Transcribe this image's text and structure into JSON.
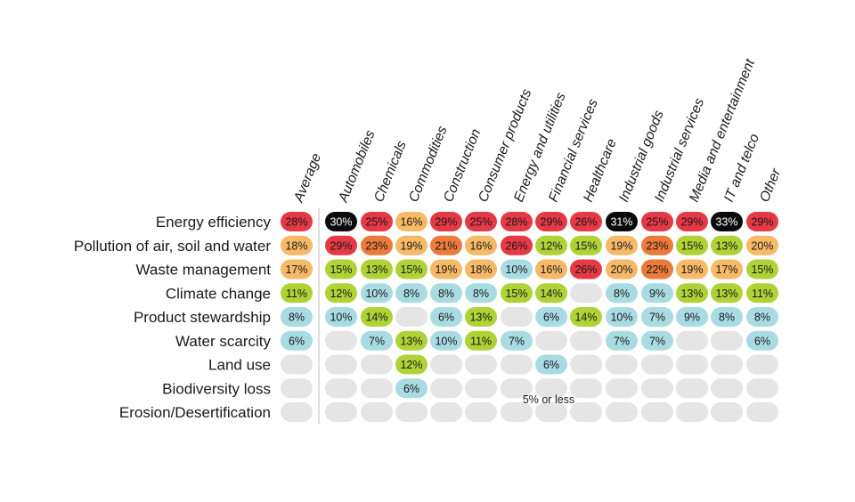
{
  "chart_data": {
    "type": "heatmap",
    "columns": [
      "Average",
      "Automobiles",
      "Chemicals",
      "Commodities",
      "Construction",
      "Consumer products",
      "Energy and utilities",
      "Financial services",
      "Healthcare",
      "Industrial goods",
      "Industrial services",
      "Media and entertainment",
      "IT and telco",
      "Other"
    ],
    "rows": [
      "Energy efficiency",
      "Pollution of air, soil and water",
      "Waste management",
      "Climate change",
      "Product stewardship",
      "Water scarcity",
      "Land use",
      "Biodiversity loss",
      "Erosion/Desertification"
    ],
    "values": [
      [
        "28%",
        "30%",
        "25%",
        "16%",
        "29%",
        "25%",
        "28%",
        "29%",
        "26%",
        "31%",
        "25%",
        "29%",
        "33%",
        "29%"
      ],
      [
        "18%",
        "29%",
        "23%",
        "19%",
        "21%",
        "16%",
        "26%",
        "12%",
        "15%",
        "19%",
        "23%",
        "15%",
        "13%",
        "20%"
      ],
      [
        "17%",
        "15%",
        "13%",
        "15%",
        "19%",
        "18%",
        "10%",
        "16%",
        "26%",
        "20%",
        "22%",
        "19%",
        "17%",
        "15%"
      ],
      [
        "11%",
        "12%",
        "10%",
        "8%",
        "8%",
        "8%",
        "15%",
        "14%",
        "",
        "8%",
        "9%",
        "13%",
        "13%",
        "11%"
      ],
      [
        "8%",
        "10%",
        "14%",
        "",
        "6%",
        "13%",
        "",
        "6%",
        "14%",
        "10%",
        "7%",
        "9%",
        "8%",
        "8%"
      ],
      [
        "6%",
        "",
        "7%",
        "13%",
        "10%",
        "11%",
        "7%",
        "",
        "",
        "7%",
        "7%",
        "",
        "",
        "6%"
      ],
      [
        "",
        "",
        "",
        "12%",
        "",
        "",
        "",
        "6%",
        "",
        "",
        "",
        "",
        "",
        ""
      ],
      [
        "",
        "",
        "",
        "6%",
        "",
        "",
        "",
        "",
        "",
        "",
        "",
        "",
        "",
        ""
      ],
      [
        "",
        "",
        "",
        "",
        "",
        "",
        "",
        "",
        "",
        "",
        "",
        "",
        "",
        ""
      ]
    ],
    "annotation": "5% or less",
    "colors": {
      "black": "#0b0b0b",
      "red": "#e63946",
      "orange": "#eb7a3b",
      "light_orange": "#f6b967",
      "green": "#afd236",
      "blue": "#a9dbe3",
      "empty": "#e5e5e6",
      "divider": "#bdbdbd"
    }
  }
}
